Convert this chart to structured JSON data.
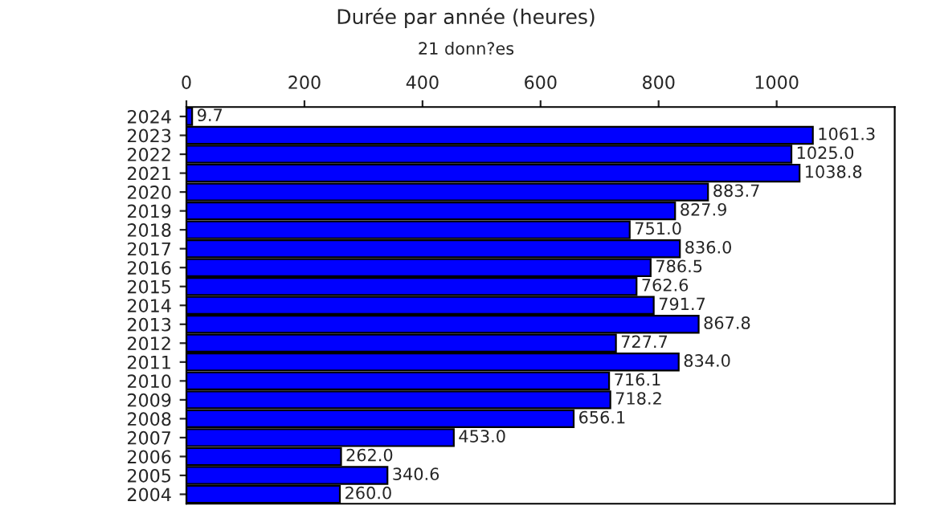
{
  "chart_data": {
    "type": "bar",
    "orientation": "horizontal",
    "title": "Durée par année (heures)",
    "subtitle": "21 donn?es",
    "categories": [
      "2024",
      "2023",
      "2022",
      "2021",
      "2020",
      "2019",
      "2018",
      "2017",
      "2016",
      "2015",
      "2014",
      "2013",
      "2012",
      "2011",
      "2010",
      "2009",
      "2008",
      "2007",
      "2006",
      "2005",
      "2004"
    ],
    "values": [
      9.7,
      1061.3,
      1025.0,
      1038.8,
      883.7,
      827.9,
      751.0,
      836.0,
      786.5,
      762.6,
      791.7,
      867.8,
      727.7,
      834.0,
      716.1,
      718.2,
      656.1,
      453.0,
      262.0,
      340.6,
      260.0
    ],
    "value_labels": [
      "9.7",
      "1061.3",
      "1025.0",
      "1038.8",
      "883.7",
      "827.9",
      "751.0",
      "836.0",
      "786.5",
      "762.6",
      "791.7",
      "867.8",
      "727.7",
      "834.0",
      "716.1",
      "718.2",
      "656.1",
      "453.0",
      "262.0",
      "340.6",
      "260.0"
    ],
    "color": "#0000ff",
    "xlim": [
      0,
      1200
    ],
    "xticks": [
      0,
      200,
      400,
      600,
      800,
      1000
    ],
    "grid": false,
    "legend": false
  }
}
